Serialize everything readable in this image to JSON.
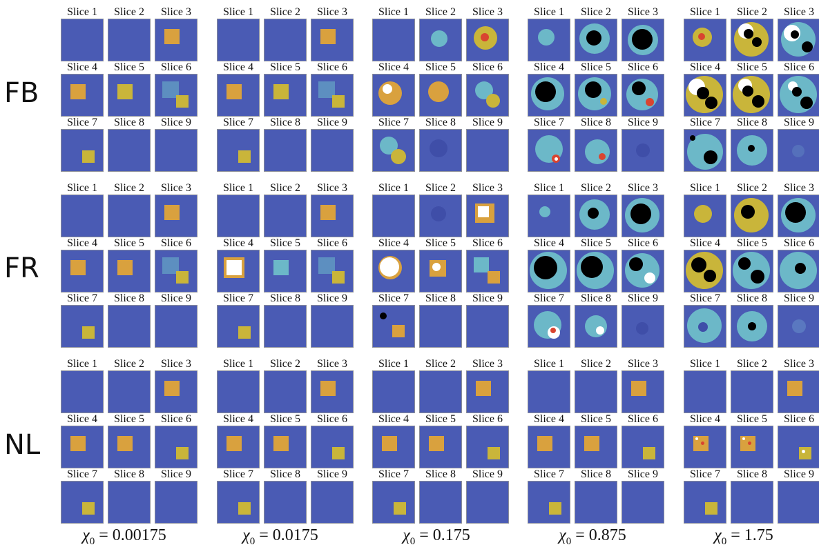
{
  "figure": {
    "row_labels": [
      "FB",
      "FR",
      "NL"
    ],
    "column_labels": [
      {
        "symbol": "χ",
        "sub": "0",
        "value": "= 0.00175"
      },
      {
        "symbol": "χ",
        "sub": "0",
        "value": "= 0.0175"
      },
      {
        "symbol": "χ",
        "sub": "0",
        "value": "= 0.175"
      },
      {
        "symbol": "χ",
        "sub": "0",
        "value": "= 0.875"
      },
      {
        "symbol": "χ",
        "sub": "0",
        "value": "= 1.75"
      }
    ],
    "slice_titles": [
      "Slice 1",
      "Slice 2",
      "Slice 3",
      "Slice 4",
      "Slice 5",
      "Slice 6",
      "Slice 7",
      "Slice 8",
      "Slice 9"
    ]
  },
  "colors": {
    "background_blue": "#4a5bb4",
    "orange": "#d9a13e",
    "yellow": "#c9b53a",
    "red": "#d94430",
    "cyan": "#6cb8c8",
    "black": "#000000",
    "white": "#ffffff"
  },
  "content_notes": {
    "layout": "3 reconstruction methods (rows) x 5 contrast values (columns), each a 3x3 grid of 9 z-slices"
  }
}
